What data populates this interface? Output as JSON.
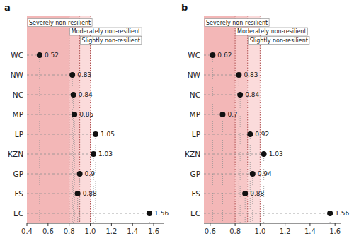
{
  "chart_data": [
    {
      "type": "dot",
      "title": "a",
      "orientation": "horizontal",
      "data_labels": true,
      "color": "#111111",
      "categories": [
        "WC",
        "NW",
        "NC",
        "MP",
        "LP",
        "KZN",
        "GP",
        "FS",
        "EC"
      ],
      "values": [
        0.52,
        0.83,
        0.84,
        0.85,
        1.05,
        1.03,
        0.9,
        0.88,
        1.56
      ],
      "xlim": [
        0.4,
        1.7
      ],
      "xticks": [
        0.4,
        0.6,
        0.8,
        {
          "value": 1.0,
          "label": "1.0"
        },
        1.2,
        1.4,
        1.6
      ],
      "bands": [
        {
          "label": "Severely non-resilient",
          "xmin": 0.4,
          "xmax": 0.8,
          "color": "#e87070"
        },
        {
          "label": "Moderately non-resilient",
          "xmin": 0.8,
          "xmax": 0.9,
          "color": "#f09090"
        },
        {
          "label": "Slightly non-resilient",
          "xmin": 0.9,
          "xmax": 1.0,
          "color": "#f8b8b8"
        }
      ]
    },
    {
      "type": "dot",
      "title": "b",
      "orientation": "horizontal",
      "data_labels": true,
      "color": "#111111",
      "categories": [
        "WC",
        "NW",
        "NC",
        "MP",
        "LP",
        "KZN",
        "GP",
        "FS",
        "EC"
      ],
      "values": [
        0.62,
        0.83,
        0.84,
        0.7,
        0.92,
        1.03,
        0.94,
        0.88,
        1.56
      ],
      "xlim": [
        0.55,
        1.65
      ],
      "xticks": [
        0.6,
        0.8,
        {
          "value": 1.0,
          "label": "1.0"
        },
        1.2,
        1.4,
        1.6
      ],
      "bands": [
        {
          "label": "Severely non-resilient",
          "xmin": 0.55,
          "xmax": 0.8,
          "color": "#e87070"
        },
        {
          "label": "Moderately non-resilient",
          "xmin": 0.8,
          "xmax": 0.9,
          "color": "#f09090"
        },
        {
          "label": "Slightly non-resilient",
          "xmin": 0.9,
          "xmax": 1.0,
          "color": "#f8b8b8"
        }
      ]
    }
  ]
}
